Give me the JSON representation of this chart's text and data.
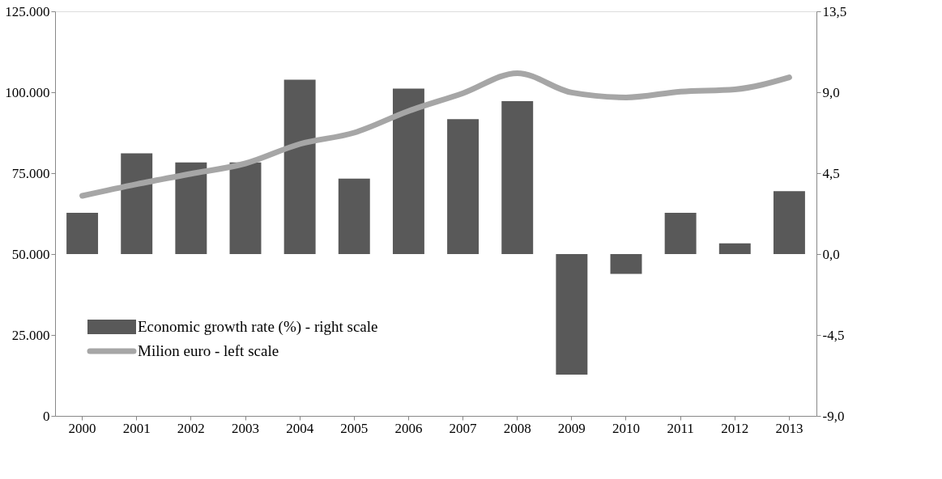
{
  "chart_data": {
    "type": "bar",
    "categories": [
      "2000",
      "2001",
      "2002",
      "2003",
      "2004",
      "2005",
      "2006",
      "2007",
      "2008",
      "2009",
      "2010",
      "2011",
      "2012",
      "2013"
    ],
    "series": [
      {
        "name": "Economic growth rate (%) - right scale",
        "axis": "y2",
        "color": "#595959",
        "values": [
          2.3,
          5.6,
          5.1,
          5.1,
          9.7,
          4.2,
          9.2,
          7.5,
          8.5,
          -6.7,
          -1.1,
          2.3,
          0.6,
          3.5
        ]
      },
      {
        "name": "Milion euro - left scale",
        "type": "line",
        "color": "#a6a6a6",
        "values": [
          68000,
          71600,
          74800,
          78000,
          84000,
          87500,
          94200,
          99700,
          105900,
          99900,
          98400,
          100200,
          100900,
          104600
        ]
      }
    ],
    "ylim": [
      0,
      125000
    ],
    "yticks": [
      {
        "value": 0,
        "label": "0"
      },
      {
        "value": 25000,
        "label": "25.000"
      },
      {
        "value": 50000,
        "label": "50.000"
      },
      {
        "value": 75000,
        "label": "75.000"
      },
      {
        "value": 100000,
        "label": "100.000"
      },
      {
        "value": 125000,
        "label": "125.000"
      }
    ],
    "y2lim": [
      -9,
      13.5
    ],
    "y2ticks": [
      {
        "value": -9,
        "label": "-9,0"
      },
      {
        "value": -4.5,
        "label": "-4,5"
      },
      {
        "value": 0,
        "label": "0,0"
      },
      {
        "value": 4.5,
        "label": "4,5"
      },
      {
        "value": 9,
        "label": "9,0"
      },
      {
        "value": 13.5,
        "label": "13,5"
      }
    ],
    "legend": "bottom left",
    "grid": false,
    "line_style": "solid",
    "marker": "none"
  }
}
